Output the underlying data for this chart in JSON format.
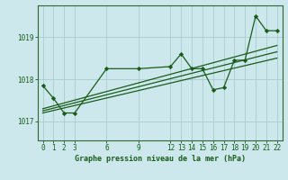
{
  "title": "Graphe pression niveau de la mer (hPa)",
  "background_color": "#cce8ec",
  "grid_color": "#aacccc",
  "line_color": "#1a5c1a",
  "spine_color": "#336633",
  "xlim": [
    -0.5,
    22.5
  ],
  "ylim": [
    1016.55,
    1019.75
  ],
  "xticks": [
    0,
    1,
    2,
    3,
    6,
    9,
    12,
    13,
    14,
    15,
    16,
    17,
    18,
    19,
    20,
    21,
    22
  ],
  "yticks": [
    1017,
    1018,
    1019
  ],
  "series": [
    {
      "x": [
        0,
        1,
        2,
        3,
        6,
        9,
        12,
        13,
        14,
        15,
        16,
        17,
        18,
        19,
        20,
        21,
        22
      ],
      "y": [
        1017.85,
        1017.55,
        1017.2,
        1017.2,
        1018.25,
        1018.25,
        1018.3,
        1018.6,
        1018.25,
        1018.25,
        1017.75,
        1017.8,
        1018.45,
        1018.45,
        1019.5,
        1019.15,
        1019.15
      ]
    },
    {
      "x": [
        0,
        22
      ],
      "y": [
        1017.2,
        1018.5
      ]
    },
    {
      "x": [
        0,
        22
      ],
      "y": [
        1017.25,
        1018.65
      ]
    },
    {
      "x": [
        0,
        22
      ],
      "y": [
        1017.3,
        1018.8
      ]
    }
  ]
}
